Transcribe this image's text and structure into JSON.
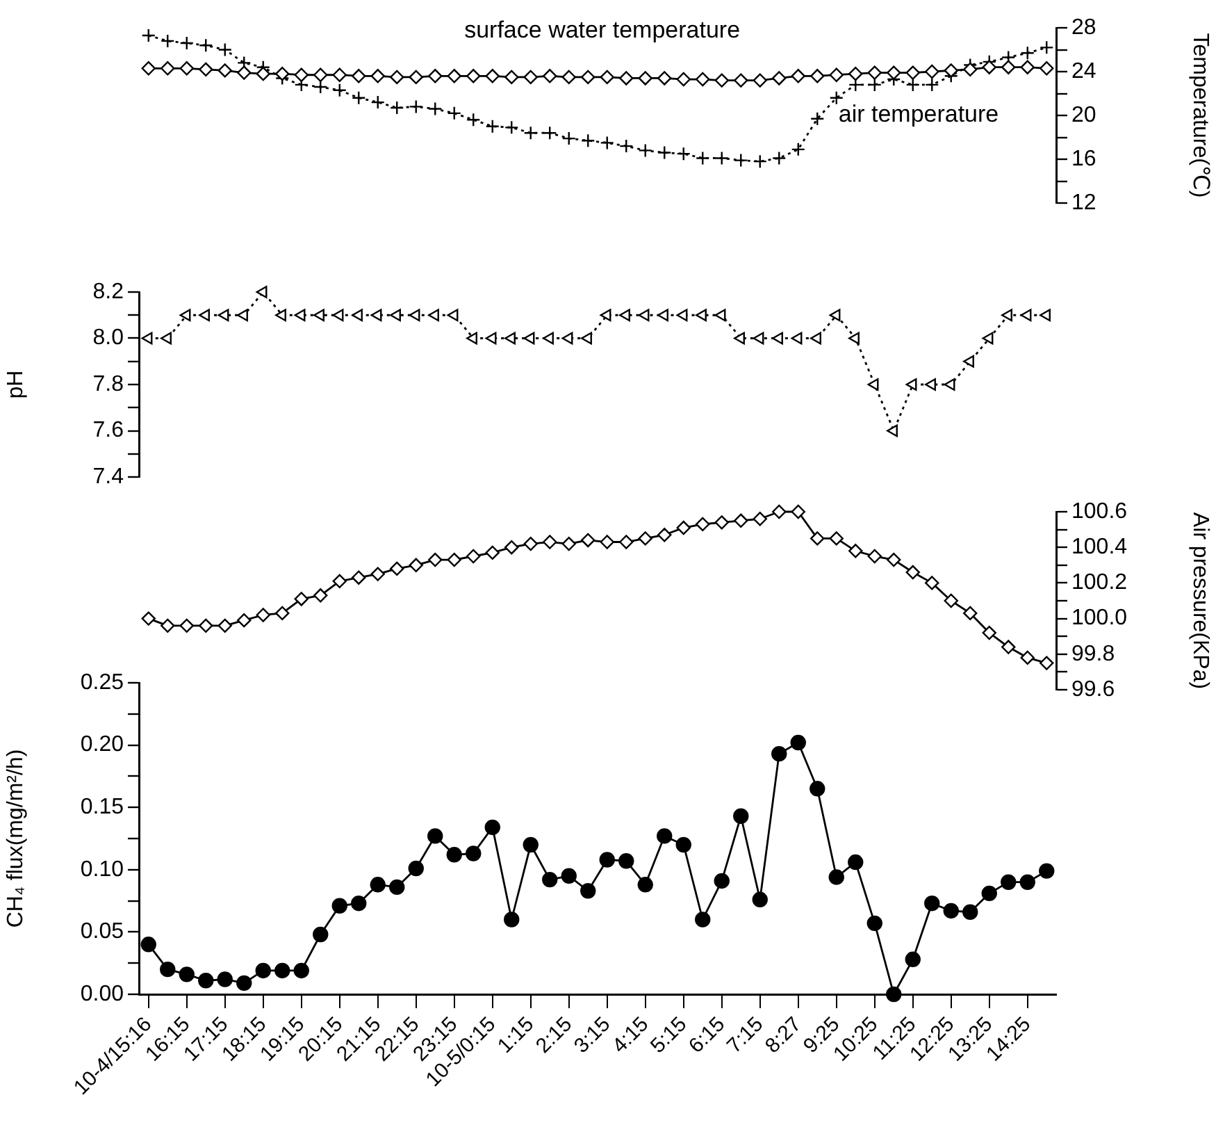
{
  "chart_data": [
    {
      "type": "line",
      "tick_labels": "y",
      "grid": false,
      "legend": false,
      "categories": [
        null,
        null,
        null,
        null,
        null,
        null,
        null,
        null,
        null,
        null,
        null,
        null,
        null,
        null,
        null,
        null,
        null,
        null,
        null,
        null,
        null,
        null,
        null,
        null,
        null,
        null,
        null,
        null,
        null,
        null,
        null,
        null,
        null,
        null,
        null,
        null,
        null,
        null,
        null,
        null,
        null,
        null,
        null,
        null,
        null,
        null,
        null,
        null
      ],
      "ylabel": "Temperature(℃)",
      "ylim": [
        12,
        28
      ],
      "yticks": [
        12,
        {
          "value": 14,
          "label": null
        },
        16,
        {
          "value": 18,
          "label": null
        },
        20,
        {
          "value": 22,
          "label": null
        },
        24,
        {
          "value": 26,
          "label": null
        },
        28
      ],
      "series": [
        {
          "name": "surface water temperature",
          "marker": "diamond",
          "line_style": "solid",
          "color": "#000000",
          "values": [
            24.3,
            24.3,
            24.3,
            24.2,
            24.1,
            23.9,
            23.8,
            23.8,
            23.7,
            23.7,
            23.7,
            23.6,
            23.6,
            23.5,
            23.5,
            23.6,
            23.6,
            23.6,
            23.6,
            23.5,
            23.5,
            23.6,
            23.5,
            23.5,
            23.5,
            23.4,
            23.4,
            23.4,
            23.3,
            23.3,
            23.2,
            23.2,
            23.2,
            23.4,
            23.6,
            23.6,
            23.7,
            23.8,
            23.9,
            23.9,
            23.9,
            24.0,
            24.1,
            24.2,
            24.4,
            24.4,
            24.4,
            24.3
          ]
        },
        {
          "name": "air temperature",
          "marker": "cross",
          "line_style": "dotted",
          "color": "#000000",
          "values": [
            27.3,
            26.8,
            26.6,
            26.4,
            26.0,
            24.8,
            24.4,
            23.4,
            22.8,
            22.6,
            22.3,
            21.6,
            21.2,
            20.7,
            20.8,
            20.6,
            20.2,
            19.6,
            19.0,
            18.9,
            18.4,
            18.4,
            17.9,
            17.7,
            17.5,
            17.2,
            16.8,
            16.6,
            16.5,
            16.1,
            16.1,
            15.9,
            15.8,
            16.1,
            16.9,
            19.7,
            21.6,
            22.8,
            22.8,
            23.3,
            22.8,
            22.8,
            23.6,
            24.6,
            24.9,
            25.3,
            25.7,
            26.2
          ]
        }
      ]
    },
    {
      "type": "line",
      "tick_labels": "y",
      "grid": false,
      "legend": false,
      "categories": [
        null,
        null,
        null,
        null,
        null,
        null,
        null,
        null,
        null,
        null,
        null,
        null,
        null,
        null,
        null,
        null,
        null,
        null,
        null,
        null,
        null,
        null,
        null,
        null,
        null,
        null,
        null,
        null,
        null,
        null,
        null,
        null,
        null,
        null,
        null,
        null,
        null,
        null,
        null,
        null,
        null,
        null,
        null,
        null,
        null,
        null,
        null,
        null
      ],
      "ylabel": "pH",
      "ylim": [
        7.4,
        8.2
      ],
      "yticks": [
        7.4,
        {
          "value": 7.5,
          "label": null
        },
        7.6,
        {
          "value": 7.7,
          "label": null
        },
        7.8,
        {
          "value": 7.9,
          "label": null
        },
        {
          "value": 8,
          "label": "8.0"
        },
        {
          "value": 8.1,
          "label": null
        },
        8.2
      ],
      "series": [
        {
          "marker": "triangle",
          "line_style": "dotted",
          "color": "#000000",
          "values": [
            8.0,
            8.0,
            8.1,
            8.1,
            8.1,
            8.1,
            8.2,
            8.1,
            8.1,
            8.1,
            8.1,
            8.1,
            8.1,
            8.1,
            8.1,
            8.1,
            8.1,
            8.0,
            8.0,
            8.0,
            8.0,
            8.0,
            8.0,
            8.0,
            8.1,
            8.1,
            8.1,
            8.1,
            8.1,
            8.1,
            8.1,
            8.0,
            8.0,
            8.0,
            8.0,
            8.0,
            8.1,
            8.0,
            7.8,
            7.6,
            7.8,
            7.8,
            7.8,
            7.9,
            8.0,
            8.1,
            8.1,
            8.1
          ]
        }
      ]
    },
    {
      "type": "line",
      "tick_labels": "y",
      "grid": false,
      "legend": false,
      "categories": [
        null,
        null,
        null,
        null,
        null,
        null,
        null,
        null,
        null,
        null,
        null,
        null,
        null,
        null,
        null,
        null,
        null,
        null,
        null,
        null,
        null,
        null,
        null,
        null,
        null,
        null,
        null,
        null,
        null,
        null,
        null,
        null,
        null,
        null,
        null,
        null,
        null,
        null,
        null,
        null,
        null,
        null,
        null,
        null,
        null,
        null,
        null,
        null
      ],
      "ylabel": "Air pressure(KPa)",
      "ylim": [
        99.6,
        100.6
      ],
      "yticks": [
        99.6,
        {
          "value": 99.7,
          "label": null
        },
        99.8,
        {
          "value": 99.9,
          "label": null
        },
        {
          "value": 100,
          "label": "100.0"
        },
        {
          "value": 100.1,
          "label": null
        },
        100.2,
        {
          "value": 100.3,
          "label": null
        },
        100.4,
        {
          "value": 100.5,
          "label": null
        },
        100.6
      ],
      "series": [
        {
          "marker": "diamond",
          "line_style": "solid",
          "color": "#000000",
          "values": [
            100.0,
            99.96,
            99.96,
            99.96,
            99.96,
            99.99,
            100.02,
            100.03,
            100.11,
            100.13,
            100.21,
            100.23,
            100.25,
            100.28,
            100.3,
            100.33,
            100.33,
            100.35,
            100.37,
            100.4,
            100.42,
            100.43,
            100.42,
            100.44,
            100.43,
            100.43,
            100.45,
            100.47,
            100.51,
            100.53,
            100.54,
            100.55,
            100.56,
            100.6,
            100.6,
            100.45,
            100.45,
            100.38,
            100.35,
            100.33,
            100.26,
            100.2,
            100.1,
            100.03,
            99.92,
            99.84,
            99.78,
            99.75
          ]
        }
      ]
    },
    {
      "type": "line",
      "grid": false,
      "legend": false,
      "categories": [
        "10-4/15:16",
        null,
        "16:15",
        null,
        "17:15",
        null,
        "18:15",
        null,
        "19:15",
        null,
        "20:15",
        null,
        "21:15",
        null,
        "22:15",
        null,
        "23:15",
        null,
        "10-5/0:15",
        null,
        "1:15",
        null,
        "2:15",
        null,
        "3:15",
        null,
        "4:15",
        null,
        "5:15",
        null,
        "6:15",
        null,
        "7:15",
        null,
        "8:27",
        null,
        "9:25",
        null,
        "10:25",
        null,
        "11:25",
        null,
        "12:25",
        null,
        "13:25",
        null,
        "14:25",
        null
      ],
      "ylabel": "CH₄ flux(mg/m²/h)",
      "ylim": [
        0,
        0.25
      ],
      "yticks": [
        {
          "value": 0,
          "label": "0.00"
        },
        {
          "value": 0.025,
          "label": null
        },
        0.05,
        {
          "value": 0.075,
          "label": null
        },
        {
          "value": 0.1,
          "label": "0.10"
        },
        {
          "value": 0.125,
          "label": null
        },
        0.15,
        {
          "value": 0.175,
          "label": null
        },
        {
          "value": 0.2,
          "label": "0.20"
        },
        {
          "value": 0.225,
          "label": null
        },
        0.25
      ],
      "series": [
        {
          "marker": "circle",
          "line_style": "solid",
          "color": "#000000",
          "values": [
            0.04,
            0.02,
            0.016,
            0.011,
            0.012,
            0.009,
            0.019,
            0.019,
            0.019,
            0.048,
            0.071,
            0.073,
            0.088,
            0.086,
            0.101,
            0.127,
            0.112,
            0.113,
            0.134,
            0.06,
            0.12,
            0.092,
            0.095,
            0.083,
            0.108,
            0.107,
            0.088,
            0.127,
            0.12,
            0.06,
            0.091,
            0.143,
            0.076,
            0.193,
            0.202,
            0.165,
            0.094,
            0.106,
            0.057,
            0,
            0.028,
            0.073,
            0.067,
            0.066,
            0.081,
            0.09,
            0.09,
            0.099
          ]
        }
      ]
    }
  ]
}
